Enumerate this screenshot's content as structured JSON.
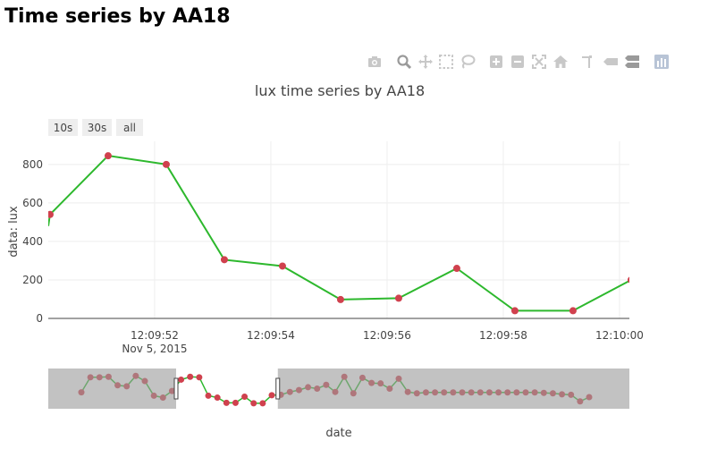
{
  "page": {
    "title": "Time series by AA18"
  },
  "modebar": {
    "buttons": [
      "camera-icon",
      "zoom-icon",
      "pan-icon",
      "box-select-icon",
      "lasso-select-icon",
      "zoom-in-icon",
      "zoom-out-icon",
      "autoscale-icon",
      "reset-axes-icon",
      "spike-lines-icon",
      "hover-closest-icon",
      "hover-compare-icon",
      "plotly-logo-icon"
    ]
  },
  "rangeselector": {
    "buttons": [
      {
        "label": "10s"
      },
      {
        "label": "30s"
      },
      {
        "label": "all"
      }
    ]
  },
  "colors": {
    "line": "#2db82d",
    "marker": "#d0414e",
    "grid": "#eeeeee",
    "axis": "#444444",
    "rangeslider_mask": "#999999"
  },
  "chart_data": {
    "type": "line",
    "title": "lux time series by AA18",
    "xlabel": "date",
    "ylabel": "data: lux",
    "x_ticks": [
      {
        "time": "12:09:52",
        "date": "Nov 5, 2015"
      },
      {
        "time": "12:09:54",
        "date": ""
      },
      {
        "time": "12:09:56",
        "date": ""
      },
      {
        "time": "12:09:58",
        "date": ""
      },
      {
        "time": "12:10:00",
        "date": ""
      }
    ],
    "y_ticks": [
      0,
      200,
      400,
      600,
      800
    ],
    "x_range": [
      "2015-11-05 12:09:50.17",
      "2015-11-05 12:10:00.17"
    ],
    "ylim": [
      0,
      920
    ],
    "grid": true,
    "legend": "none",
    "series": [
      {
        "x": [
          "2015-11-05 12:09:50.20",
          "2015-11-05 12:09:51.20",
          "2015-11-05 12:09:52.20",
          "2015-11-05 12:09:53.20",
          "2015-11-05 12:09:54.20",
          "2015-11-05 12:09:55.20",
          "2015-11-05 12:09:56.20",
          "2015-11-05 12:09:57.20",
          "2015-11-05 12:09:58.20",
          "2015-11-05 12:09:59.20",
          "2015-11-05 12:10:00.20"
        ],
        "y": [
          540,
          845,
          800,
          305,
          272,
          98,
          105,
          260,
          40,
          40,
          200
        ]
      }
    ],
    "line_extends_from": {
      "x": "2015-11-05 12:09:50.17",
      "y": 480
    },
    "rangeslider": {
      "values": [
        272,
        590,
        590,
        600,
        420,
        400,
        620,
        510,
        200,
        160,
        300,
        540,
        600,
        590,
        200,
        160,
        50,
        50,
        180,
        40,
        40,
        210,
        220,
        280,
        320,
        380,
        350,
        430,
        280,
        600,
        250,
        580,
        470,
        460,
        350,
        560,
        280,
        250,
        270,
        270,
        270,
        270,
        270,
        270,
        270,
        270,
        270,
        270,
        270,
        270,
        270,
        260,
        250,
        230,
        220,
        80,
        170
      ],
      "window": [
        0.22,
        0.395
      ]
    }
  }
}
